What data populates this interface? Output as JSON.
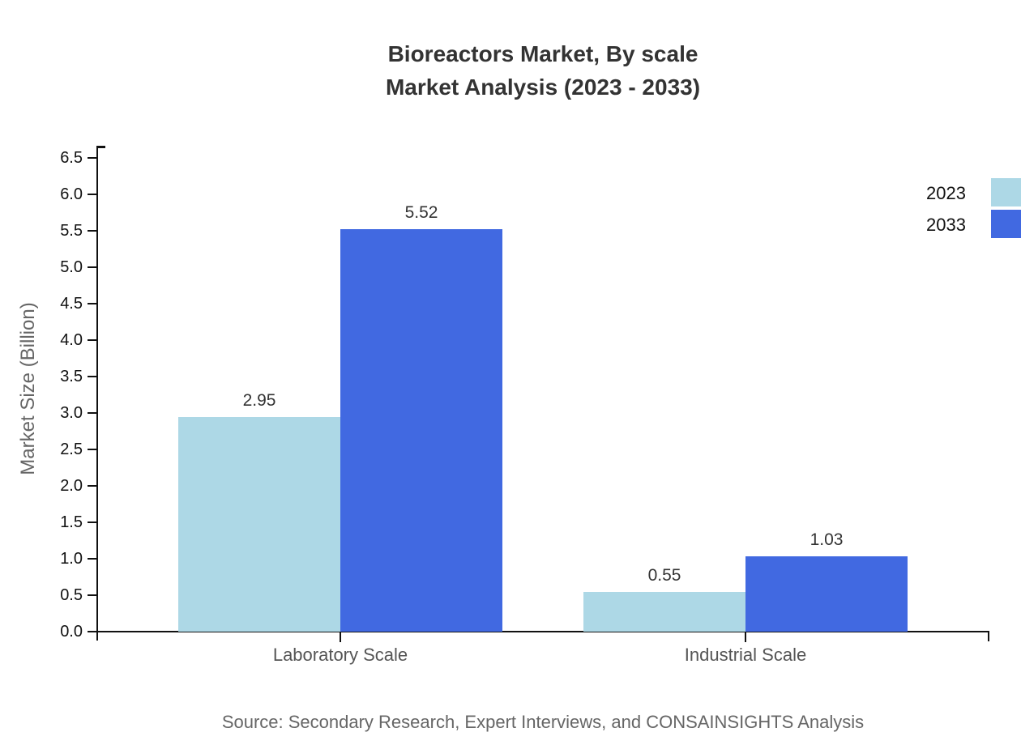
{
  "title": {
    "line1": "Bioreactors Market, By scale",
    "line2": "Market Analysis (2023 - 2033)"
  },
  "source_note": "Source: Secondary Research, Expert Interviews, and CONSAINSIGHTS Analysis",
  "chart_data": {
    "type": "bar",
    "title": "Bioreactors Market, By scale",
    "subtitle": "Market Analysis (2023 - 2033)",
    "categories": [
      "Laboratory Scale",
      "Industrial Scale"
    ],
    "series": [
      {
        "name": "2023",
        "color": "#add8e6",
        "values": [
          2.95,
          0.55
        ],
        "labels": [
          "2.95",
          "0.55"
        ]
      },
      {
        "name": "2033",
        "color": "#4169e1",
        "values": [
          5.52,
          1.03
        ],
        "labels": [
          "5.52",
          "1.03"
        ]
      }
    ],
    "xlabel": "",
    "ylabel": "Market Size (Billion)",
    "ylim": [
      0.0,
      6.5
    ],
    "ytick_step": 0.5,
    "ytick_labels": [
      "0.0",
      "0.5",
      "1.0",
      "1.5",
      "2.0",
      "2.5",
      "3.0",
      "3.5",
      "4.0",
      "4.5",
      "5.0",
      "5.5",
      "6.0",
      "6.5"
    ],
    "grid": false,
    "legend_position": "top-right",
    "background": "#ffffff"
  },
  "colors": {
    "title_text": "#333333",
    "axis_line": "#111111",
    "tick_label_text": "#111111",
    "category_label_text": "#555555",
    "value_label_text": "#333333",
    "muted_text": "#666666",
    "series_2023": "#add8e6",
    "series_2033": "#4169e1"
  }
}
